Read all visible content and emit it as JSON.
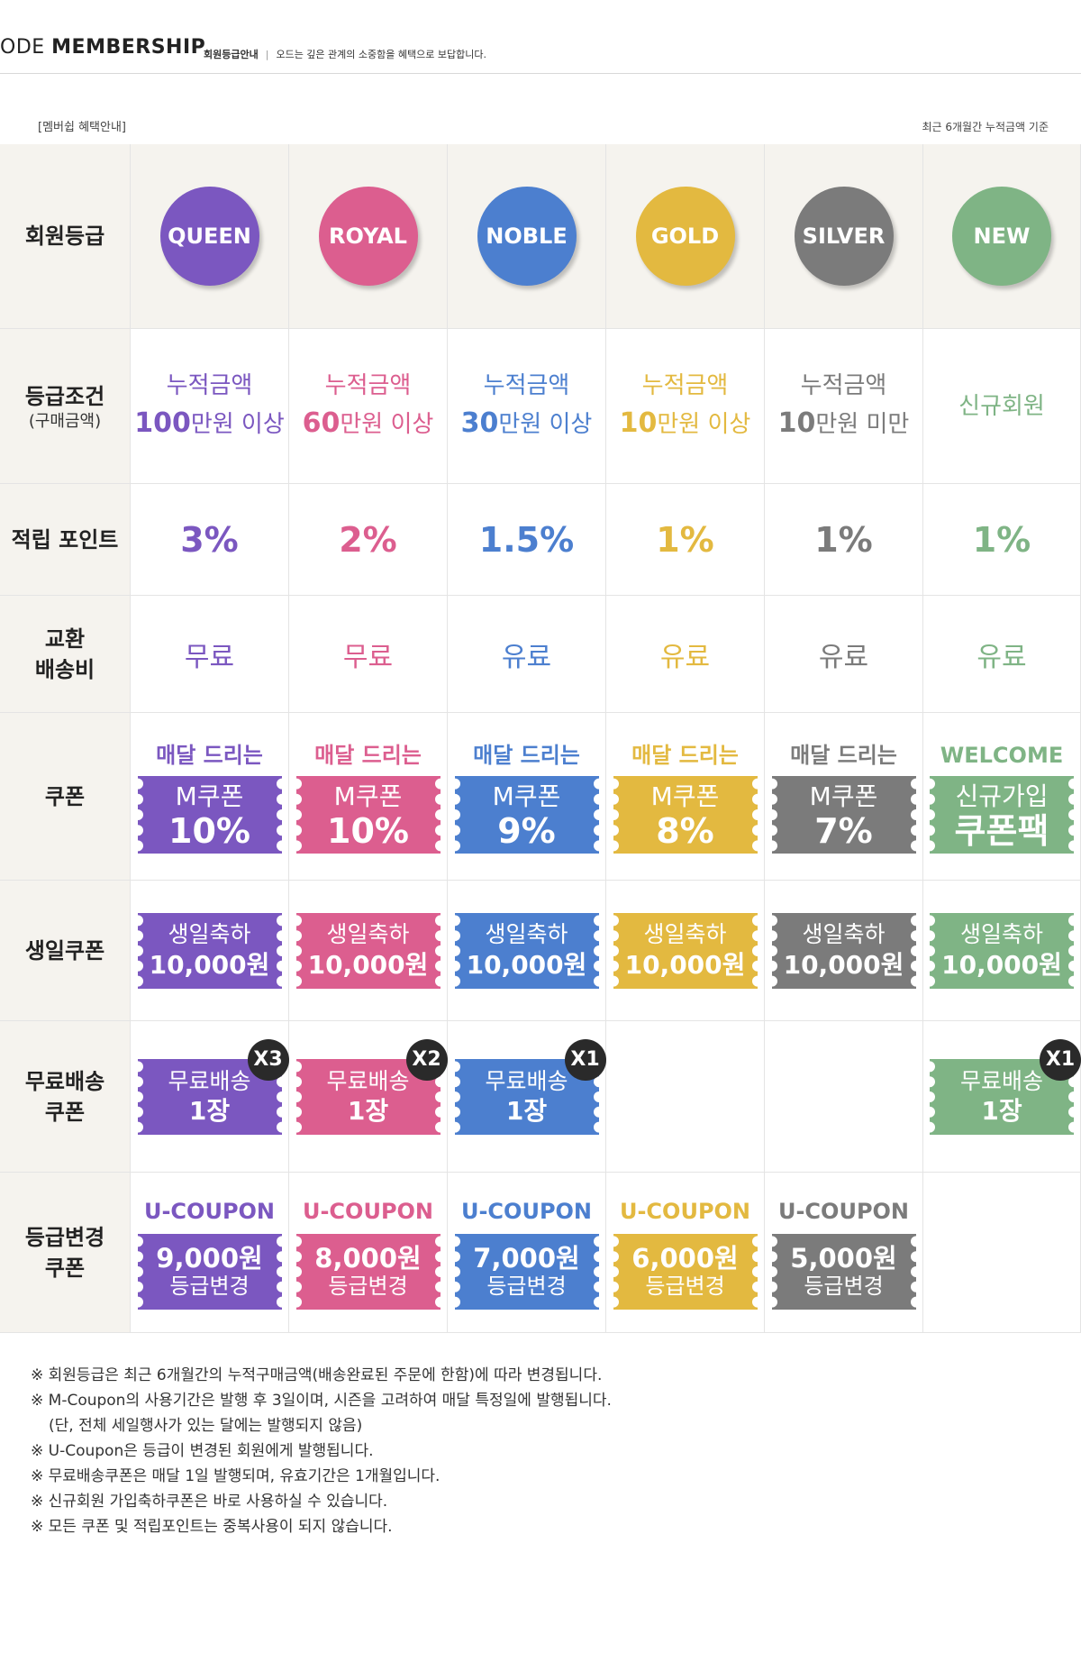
{
  "header": {
    "brand_light": "ODE ",
    "brand_bold": "MEMBERSHIP",
    "sub_title": "회원등급안내",
    "sep": "|",
    "sub_desc": "오드는 깊은 관계의 소중함을 혜택으로 보답합니다."
  },
  "section": {
    "left_label": "[멤버쉽 혜택안내]",
    "right_label": "최근 6개월간 누적금액 기준"
  },
  "row_labels": {
    "grade": "회원등급",
    "condition": "등급조건",
    "condition_sub": "(구매금액)",
    "points": "적립 포인트",
    "shipping_1": "교환",
    "shipping_2": "배송비",
    "coupon": "쿠폰",
    "birthday": "생일쿠폰",
    "freeship_1": "무료배송",
    "freeship_2": "쿠폰",
    "upgrade_1": "등급변경",
    "upgrade_2": "쿠폰"
  },
  "tiers": [
    {
      "name": "QUEEN",
      "color": "#7b57c0",
      "cond_1": "누적금액",
      "cond_num": "100",
      "cond_unit": "만원 이상",
      "point": "3%",
      "shipping": "무료",
      "coupon_head": "매달 드리는",
      "coupon_l1": "M쿠폰",
      "coupon_l2": "10%",
      "birthday_l1": "생일축하",
      "birthday_l2": "10,000원",
      "free_l1": "무료배송",
      "free_l2": "1장",
      "free_badge": "X3",
      "u_head": "U-COUPON",
      "u_l1": "9,000원",
      "u_l2": "등급변경"
    },
    {
      "name": "ROYAL",
      "color": "#dc5e8f",
      "cond_1": "누적금액",
      "cond_num": "60",
      "cond_unit": "만원 이상",
      "point": "2%",
      "shipping": "무료",
      "coupon_head": "매달 드리는",
      "coupon_l1": "M쿠폰",
      "coupon_l2": "10%",
      "birthday_l1": "생일축하",
      "birthday_l2": "10,000원",
      "free_l1": "무료배송",
      "free_l2": "1장",
      "free_badge": "X2",
      "u_head": "U-COUPON",
      "u_l1": "8,000원",
      "u_l2": "등급변경"
    },
    {
      "name": "NOBLE",
      "color": "#4c7fcf",
      "cond_1": "누적금액",
      "cond_num": "30",
      "cond_unit": "만원 이상",
      "point": "1.5%",
      "shipping": "유료",
      "coupon_head": "매달 드리는",
      "coupon_l1": "M쿠폰",
      "coupon_l2": "9%",
      "birthday_l1": "생일축하",
      "birthday_l2": "10,000원",
      "free_l1": "무료배송",
      "free_l2": "1장",
      "free_badge": "X1",
      "u_head": "U-COUPON",
      "u_l1": "7,000원",
      "u_l2": "등급변경"
    },
    {
      "name": "GOLD",
      "color": "#e3b940",
      "cond_1": "누적금액",
      "cond_num": "10",
      "cond_unit": "만원 이상",
      "point": "1%",
      "shipping": "유료",
      "coupon_head": "매달 드리는",
      "coupon_l1": "M쿠폰",
      "coupon_l2": "8%",
      "birthday_l1": "생일축하",
      "birthday_l2": "10,000원",
      "free_l1": "",
      "free_l2": "",
      "free_badge": "",
      "u_head": "U-COUPON",
      "u_l1": "6,000원",
      "u_l2": "등급변경"
    },
    {
      "name": "SILVER",
      "color": "#7b7b7b",
      "cond_1": "누적금액",
      "cond_num": "10",
      "cond_unit": "만원 미만",
      "point": "1%",
      "shipping": "유료",
      "coupon_head": "매달 드리는",
      "coupon_l1": "M쿠폰",
      "coupon_l2": "7%",
      "birthday_l1": "생일축하",
      "birthday_l2": "10,000원",
      "free_l1": "",
      "free_l2": "",
      "free_badge": "",
      "u_head": "U-COUPON",
      "u_l1": "5,000원",
      "u_l2": "등급변경"
    },
    {
      "name": "NEW",
      "color": "#7fb485",
      "cond_1": "",
      "cond_num": "",
      "cond_unit": "",
      "cond_single": "신규회원",
      "point": "1%",
      "shipping": "유료",
      "coupon_head": "WELCOME",
      "coupon_l1": "신규가입",
      "coupon_l2": "쿠폰팩",
      "birthday_l1": "생일축하",
      "birthday_l2": "10,000원",
      "free_l1": "무료배송",
      "free_l2": "1장",
      "free_badge": "X1",
      "u_head": "",
      "u_l1": "",
      "u_l2": ""
    }
  ],
  "notes": [
    "※ 회원등급은 최근 6개월간의 누적구매금액(배송완료된 주문에 한함)에 따라 변경됩니다.",
    "※ M-Coupon의 사용기간은 발행 후 3일이며, 시즌을 고려하여 매달 특정일에 발행됩니다.",
    "(단, 전체 세일행사가 있는 달에는 발행되지 않음)",
    "※ U-Coupon은 등급이 변경된 회원에게 발행됩니다.",
    "※ 무료배송쿠폰은 매달 1일 발행되며, 유효기간은 1개월입니다.",
    "※ 신규회원 가입축하쿠폰은 바로 사용하실 수 있습니다.",
    "※ 모든 쿠폰 및 적립포인트는 중복사용이 되지 않습니다."
  ]
}
